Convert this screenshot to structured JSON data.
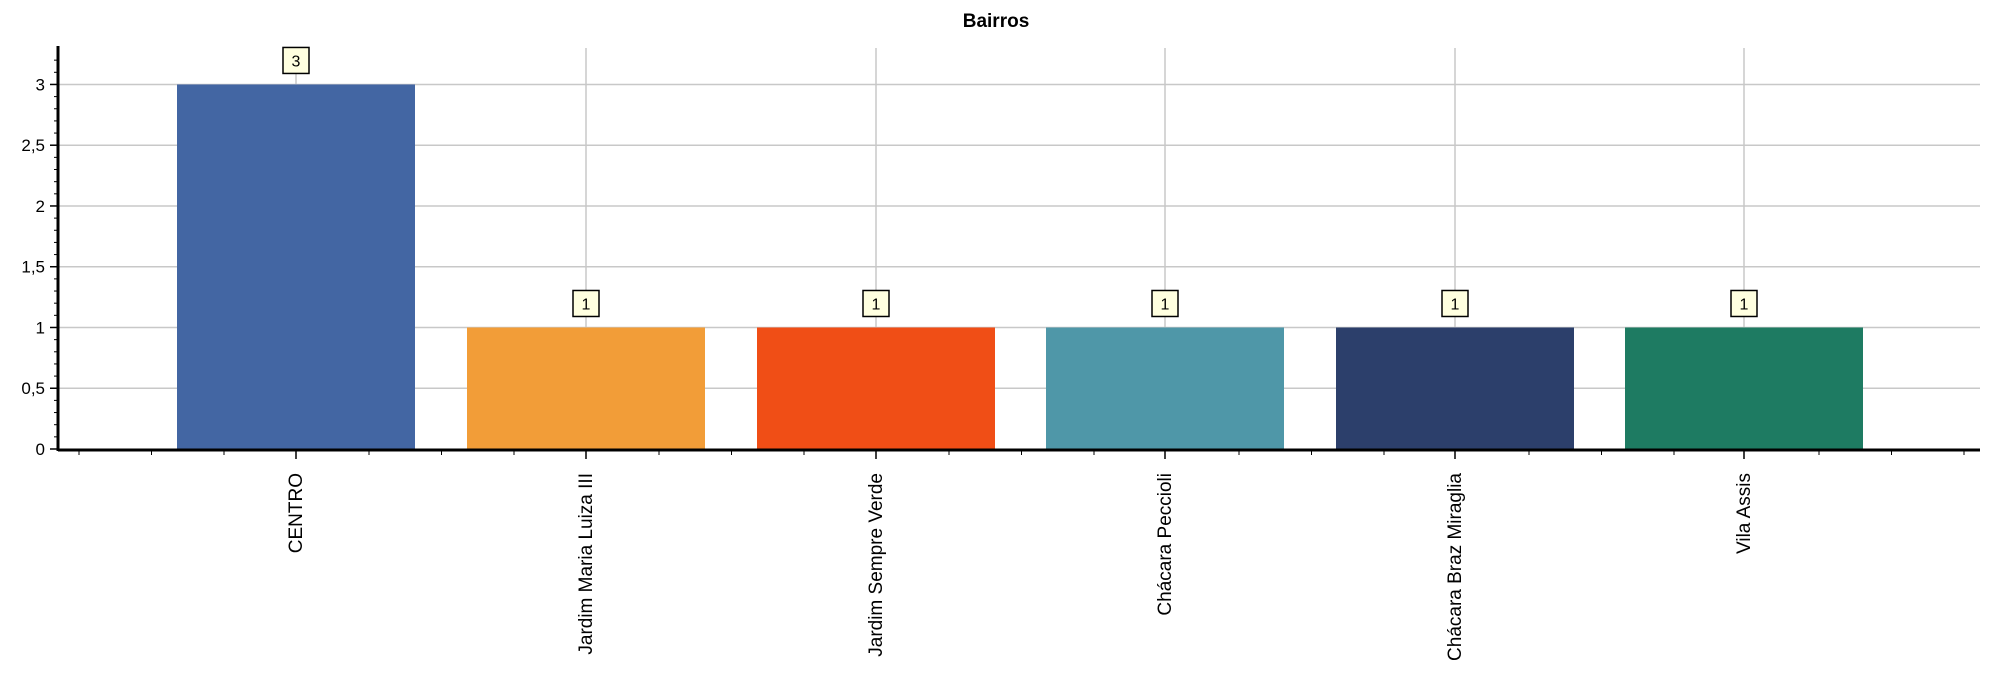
{
  "chart_data": {
    "type": "bar",
    "title": "Bairros",
    "xlabel": "",
    "ylabel": "",
    "categories": [
      "CENTRO",
      "Jardim Maria Luiza III",
      "Jardim Sempre Verde",
      "Chácara Peccioli",
      "Chácara Braz Miraglia",
      "Vila Assis"
    ],
    "values": [
      3,
      1,
      1,
      1,
      1,
      1
    ],
    "data_labels": [
      "3",
      "1",
      "1",
      "1",
      "1",
      "1"
    ],
    "colors": [
      "#4366a3",
      "#f29d38",
      "#f04e16",
      "#4f97a8",
      "#2c3f6b",
      "#1e7b62"
    ],
    "ylim": [
      0,
      3.3
    ],
    "yticks": [
      0,
      0.5,
      1,
      1.5,
      2,
      2.5,
      3
    ],
    "ytick_labels": [
      "0",
      "0,5",
      "1",
      "1,5",
      "2",
      "2,5",
      "3"
    ],
    "grid": true,
    "legend": "none",
    "category_label_orientation": "vertical",
    "grid_color": "#c8c8c8",
    "data_label_background": "#ffffe0"
  }
}
